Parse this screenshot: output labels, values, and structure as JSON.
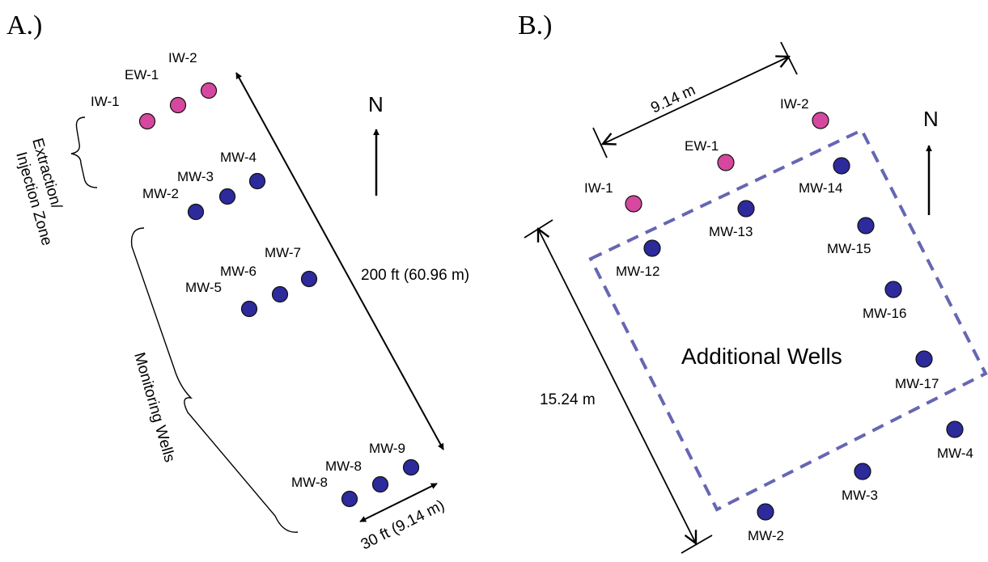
{
  "colors": {
    "injection_well": "#d6479f",
    "monitoring_well": "#2d2a9c",
    "well_stroke": "#111111",
    "boundary": "#6666b3",
    "line": "#000000"
  },
  "panel_a": {
    "label": "A.)",
    "wells": {
      "iw1": "IW-1",
      "ew1": "EW-1",
      "iw2": "IW-2",
      "mw2": "MW-2",
      "mw3": "MW-3",
      "mw4": "MW-4",
      "mw5": "MW-5",
      "mw6": "MW-6",
      "mw7": "MW-7",
      "mw8a": "MW-8",
      "mw8b": "MW-8",
      "mw9": "MW-9"
    },
    "zone_extraction_line1": "Extraction/",
    "zone_extraction_line2": "Injection Zone",
    "zone_monitoring": "Monitoring Wells",
    "dimension_long": "200 ft (60.96 m)",
    "dimension_short": "30 ft (9.14 m)",
    "north": "N"
  },
  "panel_b": {
    "label": "B.)",
    "wells": {
      "iw1": "IW-1",
      "ew1": "EW-1",
      "iw2": "IW-2",
      "mw12": "MW-12",
      "mw13": "MW-13",
      "mw14": "MW-14",
      "mw15": "MW-15",
      "mw16": "MW-16",
      "mw17": "MW-17",
      "mw4": "MW-4",
      "mw3": "MW-3",
      "mw2": "MW-2"
    },
    "dimension_top": "9.14 m",
    "dimension_left": "15.24 m",
    "boundary_label": "Additional Wells",
    "north": "N"
  }
}
